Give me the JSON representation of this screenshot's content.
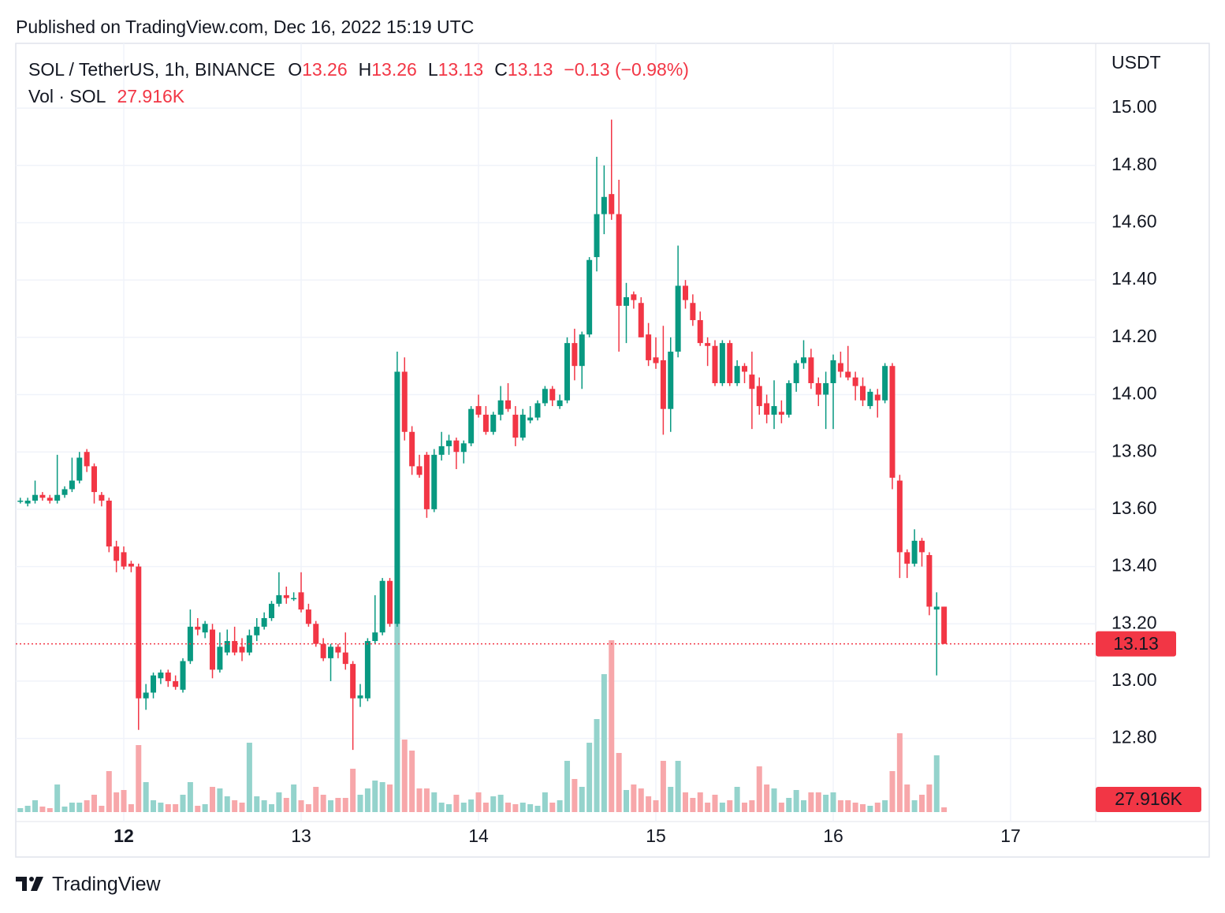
{
  "header": "Published on TradingView.com, Dec 16, 2022 15:19 UTC",
  "footer": "TradingView",
  "chart_data": {
    "type": "candlestick",
    "symbol": "SOL / TetherUS, 1h, BINANCE",
    "ohlc_labels": [
      "O",
      "H",
      "L",
      "C"
    ],
    "change": "−0.13 (−0.98%)",
    "volume_title": "Vol · SOL",
    "volume_label": "27.916K",
    "y_axis_label": "USDT",
    "colors": {
      "up": "#089981",
      "down": "#f23645",
      "volume_up": "#94d3cc",
      "volume_down": "#f7a7aa"
    },
    "grid": true,
    "xlim": [
      11.391,
      17.48
    ],
    "xticks": [
      12,
      13,
      14,
      15,
      16,
      17
    ],
    "ylim": [
      12.543,
      15.226
    ],
    "yticks": [
      {
        "value": 12.8,
        "label": "12.80"
      },
      {
        "value": 13,
        "label": "13.00"
      },
      {
        "value": 13.2,
        "label": "13.20"
      },
      {
        "value": 13.4,
        "label": "13.40"
      },
      {
        "value": 13.6,
        "label": "13.60"
      },
      {
        "value": 13.8,
        "label": "13.80"
      },
      {
        "value": 14,
        "label": "14.00"
      },
      {
        "value": 14.2,
        "label": "14.20"
      },
      {
        "value": 14.4,
        "label": "14.40"
      },
      {
        "value": 14.6,
        "label": "14.60"
      },
      {
        "value": 14.8,
        "label": "14.80"
      },
      {
        "value": 15,
        "label": "15.00"
      }
    ],
    "volume_lim": [
      0,
      4535000
    ],
    "x": [
      11.4167,
      11.4583,
      11.5,
      11.5417,
      11.5833,
      11.625,
      11.6667,
      11.7083,
      11.75,
      11.7917,
      11.8333,
      11.875,
      11.9167,
      11.9583,
      12,
      12.0417,
      12.0833,
      12.125,
      12.1667,
      12.2083,
      12.25,
      12.2917,
      12.3333,
      12.375,
      12.4167,
      12.4583,
      12.5,
      12.5417,
      12.5833,
      12.625,
      12.6667,
      12.7083,
      12.75,
      12.7917,
      12.8333,
      12.875,
      12.9167,
      12.9583,
      13,
      13.0417,
      13.0833,
      13.125,
      13.1667,
      13.2083,
      13.25,
      13.2917,
      13.3333,
      13.375,
      13.4167,
      13.4583,
      13.5,
      13.5417,
      13.5833,
      13.625,
      13.6667,
      13.7083,
      13.75,
      13.7917,
      13.8333,
      13.875,
      13.9167,
      13.9583,
      14,
      14.0417,
      14.0833,
      14.125,
      14.1667,
      14.2083,
      14.25,
      14.2917,
      14.3333,
      14.375,
      14.4167,
      14.4583,
      14.5,
      14.5417,
      14.5833,
      14.625,
      14.6667,
      14.7083,
      14.75,
      14.7917,
      14.8333,
      14.875,
      14.9167,
      14.9583,
      15,
      15.0417,
      15.0833,
      15.125,
      15.1667,
      15.2083,
      15.25,
      15.2917,
      15.3333,
      15.375,
      15.4167,
      15.4583,
      15.5,
      15.5417,
      15.5833,
      15.625,
      15.6667,
      15.7083,
      15.75,
      15.7917,
      15.8333,
      15.875,
      15.9167,
      15.9583,
      16,
      16.0417,
      16.0833,
      16.125,
      16.1667,
      16.2083,
      16.25,
      16.2917,
      16.3333,
      16.375,
      16.4167,
      16.4583,
      16.5,
      16.5417,
      16.5833,
      16.625
    ],
    "open": [
      13.63,
      13.62,
      13.63,
      13.65,
      13.64,
      13.63,
      13.65,
      13.67,
      13.7,
      13.8,
      13.75,
      13.65,
      13.63,
      13.47,
      13.45,
      13.41,
      13.4,
      12.94,
      12.96,
      13.01,
      13.03,
      13.0,
      12.97,
      13.07,
      13.19,
      13.17,
      13.18,
      13.04,
      13.1,
      13.14,
      13.12,
      13.1,
      13.16,
      13.19,
      13.22,
      13.27,
      13.3,
      13.29,
      13.31,
      13.25,
      13.2,
      13.13,
      13.08,
      13.12,
      13.1,
      13.06,
      12.94,
      12.94,
      13.14,
      13.17,
      13.35,
      13.2,
      14.08,
      13.87,
      13.75,
      13.79,
      13.6,
      13.79,
      13.82,
      13.84,
      13.8,
      13.83,
      13.96,
      13.93,
      13.87,
      13.93,
      13.98,
      13.93,
      13.85,
      13.91,
      13.92,
      13.97,
      14.02,
      13.96,
      13.98,
      14.18,
      14.1,
      14.21,
      14.48,
      14.63,
      14.7,
      14.63,
      14.31,
      14.35,
      14.32,
      14.21,
      14.13,
      14.12,
      13.95,
      14.15,
      14.38,
      14.32,
      14.26,
      14.18,
      14.17,
      14.04,
      14.18,
      14.04,
      14.1,
      14.07,
      14.03,
      13.97,
      13.93,
      13.94,
      13.93,
      14.04,
      14.11,
      14.13,
      14.04,
      14.0,
      14.04,
      14.11,
      14.08,
      14.06,
      14.03,
      13.96,
      14.0,
      13.98,
      14.1,
      13.7,
      13.45,
      13.41,
      13.49,
      13.44,
      13.25,
      13.26
    ],
    "high": [
      13.64,
      13.64,
      13.7,
      13.66,
      13.65,
      13.79,
      13.68,
      13.78,
      13.8,
      13.81,
      13.76,
      13.66,
      13.64,
      13.49,
      13.47,
      13.42,
      13.41,
      12.99,
      13.03,
      13.04,
      13.04,
      13.02,
      13.08,
      13.25,
      13.22,
      13.21,
      13.2,
      13.17,
      13.18,
      13.19,
      13.15,
      13.18,
      13.22,
      13.24,
      13.28,
      13.38,
      13.33,
      13.31,
      13.38,
      13.27,
      13.21,
      13.15,
      13.13,
      13.13,
      13.17,
      13.07,
      12.99,
      13.15,
      13.3,
      13.36,
      13.36,
      14.15,
      14.13,
      13.89,
      13.79,
      13.8,
      13.81,
      13.87,
      13.86,
      13.85,
      13.84,
      13.96,
      14.0,
      13.96,
      13.94,
      14.03,
      14.04,
      13.96,
      13.95,
      13.96,
      13.98,
      14.03,
      14.03,
      14.0,
      14.2,
      14.23,
      14.22,
      14.48,
      14.83,
      14.8,
      14.96,
      14.75,
      14.39,
      14.36,
      14.34,
      14.25,
      14.2,
      14.24,
      14.2,
      14.52,
      14.4,
      14.35,
      14.29,
      14.2,
      14.19,
      14.19,
      14.19,
      14.12,
      14.11,
      14.15,
      14.06,
      14.0,
      14.05,
      13.98,
      14.05,
      14.12,
      14.19,
      14.16,
      14.06,
      14.08,
      14.14,
      14.15,
      14.17,
      14.08,
      14.06,
      14.02,
      14.02,
      14.11,
      14.11,
      13.72,
      13.46,
      13.53,
      13.5,
      13.45,
      13.31,
      13.26
    ],
    "low": [
      13.62,
      13.61,
      13.62,
      13.63,
      13.62,
      13.62,
      13.64,
      13.66,
      13.69,
      13.73,
      13.62,
      13.61,
      13.45,
      13.38,
      13.39,
      13.38,
      12.83,
      12.9,
      12.94,
      12.99,
      12.98,
      12.97,
      12.96,
      13.06,
      13.16,
      13.15,
      13.01,
      13.03,
      13.09,
      13.09,
      13.07,
      13.09,
      13.14,
      13.18,
      13.21,
      13.26,
      13.27,
      13.28,
      13.24,
      13.19,
      13.12,
      13.07,
      13.0,
      13.08,
      13.04,
      12.76,
      12.91,
      12.93,
      13.13,
      13.16,
      13.19,
      13.19,
      13.84,
      13.72,
      13.71,
      13.57,
      13.59,
      13.77,
      13.79,
      13.74,
      13.76,
      13.82,
      13.92,
      13.86,
      13.86,
      13.91,
      13.94,
      13.82,
      13.84,
      13.9,
      13.91,
      13.96,
      13.96,
      13.95,
      13.97,
      14.05,
      14.02,
      14.2,
      14.43,
      14.56,
      14.61,
      14.15,
      14.18,
      14.3,
      14.2,
      14.1,
      14.09,
      13.86,
      13.87,
      14.13,
      14.3,
      14.24,
      14.17,
      14.1,
      14.03,
      14.03,
      14.03,
      14.03,
      14.04,
      13.88,
      13.93,
      13.9,
      13.88,
      13.9,
      13.92,
      14.01,
      14.09,
      14.02,
      13.96,
      13.88,
      13.88,
      14.06,
      14.05,
      13.98,
      13.96,
      13.95,
      13.92,
      13.97,
      13.67,
      13.36,
      13.36,
      13.4,
      13.4,
      13.23,
      13.02,
      13.13
    ],
    "close": [
      13.63,
      13.63,
      13.65,
      13.64,
      13.63,
      13.65,
      13.67,
      13.7,
      13.78,
      13.75,
      13.66,
      13.63,
      13.47,
      13.42,
      13.4,
      13.4,
      12.94,
      12.96,
      13.02,
      13.03,
      13.0,
      12.98,
      13.07,
      13.19,
      13.18,
      13.2,
      13.04,
      13.12,
      13.14,
      13.1,
      13.1,
      13.16,
      13.19,
      13.22,
      13.27,
      13.3,
      13.29,
      13.29,
      13.25,
      13.2,
      13.13,
      13.08,
      13.12,
      13.1,
      13.06,
      12.94,
      12.95,
      13.14,
      13.17,
      13.35,
      13.2,
      14.08,
      13.87,
      13.75,
      13.72,
      13.6,
      13.79,
      13.82,
      13.84,
      13.8,
      13.83,
      13.95,
      13.93,
      13.87,
      13.93,
      13.98,
      13.95,
      13.85,
      13.93,
      13.92,
      13.97,
      14.02,
      13.98,
      13.98,
      14.18,
      14.1,
      14.21,
      14.47,
      14.63,
      14.69,
      14.63,
      14.31,
      14.34,
      14.33,
      14.2,
      14.12,
      14.11,
      13.95,
      14.15,
      14.38,
      14.33,
      14.26,
      14.18,
      14.17,
      14.04,
      14.18,
      14.04,
      14.1,
      14.08,
      14.02,
      13.96,
      13.93,
      13.96,
      13.93,
      14.04,
      14.11,
      14.13,
      14.04,
      14.0,
      14.04,
      14.12,
      14.08,
      14.06,
      14.03,
      13.98,
      14.01,
      13.98,
      14.1,
      13.71,
      13.45,
      13.41,
      13.49,
      13.45,
      13.26,
      13.26,
      13.13
    ],
    "volume": [
      23250,
      37200,
      69750,
      32550,
      23250,
      162750,
      32550,
      55800,
      55800,
      69750,
      102300,
      37200,
      241800,
      116250,
      130200,
      46500,
      395250,
      176700,
      69750,
      55800,
      46500,
      46500,
      102300,
      176700,
      37200,
      46500,
      148800,
      139500,
      93000,
      69750,
      55800,
      409200,
      93000,
      69750,
      46500,
      116250,
      83700,
      162750,
      69750,
      46500,
      148800,
      102300,
      69750,
      83700,
      83700,
      255750,
      102300,
      139500,
      186000,
      176700,
      162750,
      1116000,
      427800,
      362700,
      139500,
      139500,
      116250,
      55800,
      46500,
      102300,
      55800,
      74400,
      116250,
      55800,
      93000,
      102300,
      55800,
      46500,
      55800,
      46500,
      37200,
      116250,
      55800,
      69750,
      302250,
      195300,
      148800,
      409200,
      548700,
      813750,
      1013700,
      348750,
      130200,
      162750,
      139500,
      93000,
      69750,
      302250,
      148800,
      302250,
      116250,
      83700,
      116250,
      55800,
      102300,
      55800,
      69750,
      148800,
      55800,
      69750,
      269700,
      162750,
      139500,
      55800,
      83700,
      130200,
      69750,
      116250,
      116250,
      102300,
      116250,
      69750,
      69750,
      55800,
      46500,
      37200,
      55800,
      69750,
      241800,
      465000,
      162750,
      69750,
      102300,
      162750,
      334800,
      27916
    ]
  }
}
